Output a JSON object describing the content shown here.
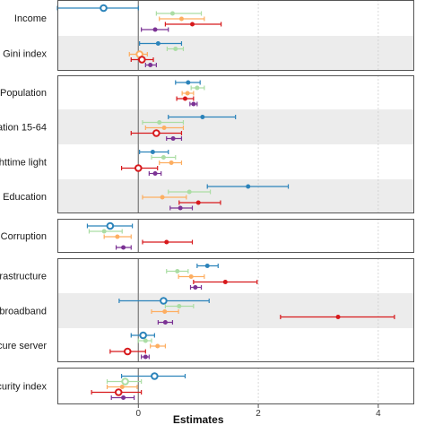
{
  "chart_data": {
    "type": "scatter",
    "subtype": "coefficient-plot-with-error-bars",
    "xlabel": "Estimates",
    "xlim": [
      -1.35,
      4.6
    ],
    "xticks": [
      0,
      2,
      4
    ],
    "xtick_labels": [
      "0",
      "2",
      "4"
    ],
    "reference_line_x": 0,
    "grid": "dotted vertical at x ticks",
    "series": [
      {
        "color": "#2B83BA"
      },
      {
        "color": "#ABDDA4"
      },
      {
        "color": "#FDAE61"
      },
      {
        "color": "#D7191C"
      },
      {
        "color": "#7B3294"
      }
    ],
    "variables": [
      {
        "label": "Income",
        "panel": 1,
        "shaded": false,
        "points": [
          {
            "s": 0,
            "est": -0.58,
            "lo": -1.35,
            "hi": 0.0,
            "big": true
          },
          {
            "s": 1,
            "est": 0.57,
            "lo": 0.3,
            "hi": 1.05
          },
          {
            "s": 2,
            "est": 0.72,
            "lo": 0.35,
            "hi": 1.1
          },
          {
            "s": 3,
            "est": 0.9,
            "lo": 0.45,
            "hi": 1.38
          },
          {
            "s": 4,
            "est": 0.28,
            "lo": 0.05,
            "hi": 0.5
          }
        ]
      },
      {
        "label": "Gini index",
        "panel": 1,
        "shaded": true,
        "points": [
          {
            "s": 0,
            "est": 0.33,
            "lo": 0.02,
            "hi": 0.72
          },
          {
            "s": 1,
            "est": 0.62,
            "lo": 0.48,
            "hi": 0.75
          },
          {
            "s": 2,
            "est": 0.02,
            "lo": -0.15,
            "hi": 0.15,
            "big": true
          },
          {
            "s": 3,
            "est": 0.06,
            "lo": -0.12,
            "hi": 0.25,
            "big": true
          },
          {
            "s": 4,
            "est": 0.2,
            "lo": 0.12,
            "hi": 0.3
          }
        ]
      },
      {
        "label": "Population",
        "panel": 2,
        "shaded": false,
        "points": [
          {
            "s": 0,
            "est": 0.83,
            "lo": 0.62,
            "hi": 1.03
          },
          {
            "s": 1,
            "est": 0.98,
            "lo": 0.88,
            "hi": 1.1
          },
          {
            "s": 2,
            "est": 0.82,
            "lo": 0.73,
            "hi": 0.92
          },
          {
            "s": 3,
            "est": 0.78,
            "lo": 0.64,
            "hi": 0.92
          },
          {
            "s": 4,
            "est": 0.92,
            "lo": 0.86,
            "hi": 0.98
          }
        ]
      },
      {
        "label": "ation 15-64",
        "panel": 2,
        "shaded": true,
        "points": [
          {
            "s": 0,
            "est": 1.07,
            "lo": 0.5,
            "hi": 1.62
          },
          {
            "s": 1,
            "est": 0.35,
            "lo": 0.07,
            "hi": 0.75
          },
          {
            "s": 2,
            "est": 0.43,
            "lo": 0.12,
            "hi": 0.75
          },
          {
            "s": 3,
            "est": 0.3,
            "lo": -0.12,
            "hi": 0.72,
            "big": true
          },
          {
            "s": 4,
            "est": 0.58,
            "lo": 0.47,
            "hi": 0.72
          }
        ]
      },
      {
        "label": "httime light",
        "panel": 2,
        "shaded": false,
        "points": [
          {
            "s": 0,
            "est": 0.24,
            "lo": 0.02,
            "hi": 0.5
          },
          {
            "s": 1,
            "est": 0.42,
            "lo": 0.22,
            "hi": 0.62
          },
          {
            "s": 2,
            "est": 0.55,
            "lo": 0.35,
            "hi": 0.72
          },
          {
            "s": 3,
            "est": 0.0,
            "lo": -0.28,
            "hi": 0.32,
            "big": true
          },
          {
            "s": 4,
            "est": 0.28,
            "lo": 0.18,
            "hi": 0.38
          }
        ]
      },
      {
        "label": "Education",
        "panel": 2,
        "shaded": true,
        "points": [
          {
            "s": 0,
            "est": 1.83,
            "lo": 1.15,
            "hi": 2.5
          },
          {
            "s": 1,
            "est": 0.85,
            "lo": 0.5,
            "hi": 1.2
          },
          {
            "s": 2,
            "est": 0.4,
            "lo": 0.07,
            "hi": 0.8
          },
          {
            "s": 3,
            "est": 1.0,
            "lo": 0.68,
            "hi": 1.37
          },
          {
            "s": 4,
            "est": 0.7,
            "lo": 0.53,
            "hi": 0.9
          }
        ]
      },
      {
        "label": "Corruption",
        "panel": 3,
        "shaded": false,
        "points": [
          {
            "s": 0,
            "est": -0.47,
            "lo": -0.85,
            "hi": -0.1,
            "big": true
          },
          {
            "s": 1,
            "est": -0.57,
            "lo": -0.82,
            "hi": -0.27
          },
          {
            "s": 2,
            "est": -0.35,
            "lo": -0.57,
            "hi": -0.12
          },
          {
            "s": 3,
            "est": 0.47,
            "lo": 0.07,
            "hi": 0.9
          },
          {
            "s": 4,
            "est": -0.25,
            "lo": -0.37,
            "hi": -0.12
          }
        ]
      },
      {
        "label": "frastructure",
        "panel": 4,
        "shaded": false,
        "points": [
          {
            "s": 0,
            "est": 1.15,
            "lo": 0.98,
            "hi": 1.33
          },
          {
            "s": 1,
            "est": 0.65,
            "lo": 0.47,
            "hi": 0.83
          },
          {
            "s": 2,
            "est": 0.88,
            "lo": 0.67,
            "hi": 1.1
          },
          {
            "s": 3,
            "est": 1.45,
            "lo": 0.92,
            "hi": 1.98
          },
          {
            "s": 4,
            "est": 0.95,
            "lo": 0.87,
            "hi": 1.05
          }
        ]
      },
      {
        "label": "lbroadband",
        "panel": 4,
        "shaded": true,
        "points": [
          {
            "s": 0,
            "est": 0.42,
            "lo": -0.32,
            "hi": 1.18,
            "big": true
          },
          {
            "s": 1,
            "est": 0.68,
            "lo": 0.45,
            "hi": 0.92
          },
          {
            "s": 2,
            "est": 0.44,
            "lo": 0.22,
            "hi": 0.67
          },
          {
            "s": 3,
            "est": 3.33,
            "lo": 2.37,
            "hi": 4.27
          },
          {
            "s": 4,
            "est": 0.45,
            "lo": 0.33,
            "hi": 0.57
          }
        ]
      },
      {
        "label": "cure server",
        "panel": 4,
        "shaded": false,
        "points": [
          {
            "s": 0,
            "est": 0.08,
            "lo": -0.12,
            "hi": 0.27,
            "big": true
          },
          {
            "s": 1,
            "est": 0.12,
            "lo": 0.0,
            "hi": 0.22
          },
          {
            "s": 2,
            "est": 0.32,
            "lo": 0.2,
            "hi": 0.45
          },
          {
            "s": 3,
            "est": -0.18,
            "lo": -0.47,
            "hi": 0.12,
            "big": true
          },
          {
            "s": 4,
            "est": 0.12,
            "lo": 0.05,
            "hi": 0.18
          }
        ]
      },
      {
        "label": "curity index",
        "panel": 5,
        "shaded": false,
        "points": [
          {
            "s": 0,
            "est": 0.27,
            "lo": -0.28,
            "hi": 0.78,
            "big": true
          },
          {
            "s": 1,
            "est": -0.22,
            "lo": -0.52,
            "hi": 0.05,
            "big": true
          },
          {
            "s": 2,
            "est": -0.27,
            "lo": -0.52,
            "hi": -0.02
          },
          {
            "s": 3,
            "est": -0.33,
            "lo": -0.78,
            "hi": 0.05,
            "big": true
          },
          {
            "s": 4,
            "est": -0.25,
            "lo": -0.45,
            "hi": -0.07
          }
        ]
      }
    ]
  }
}
